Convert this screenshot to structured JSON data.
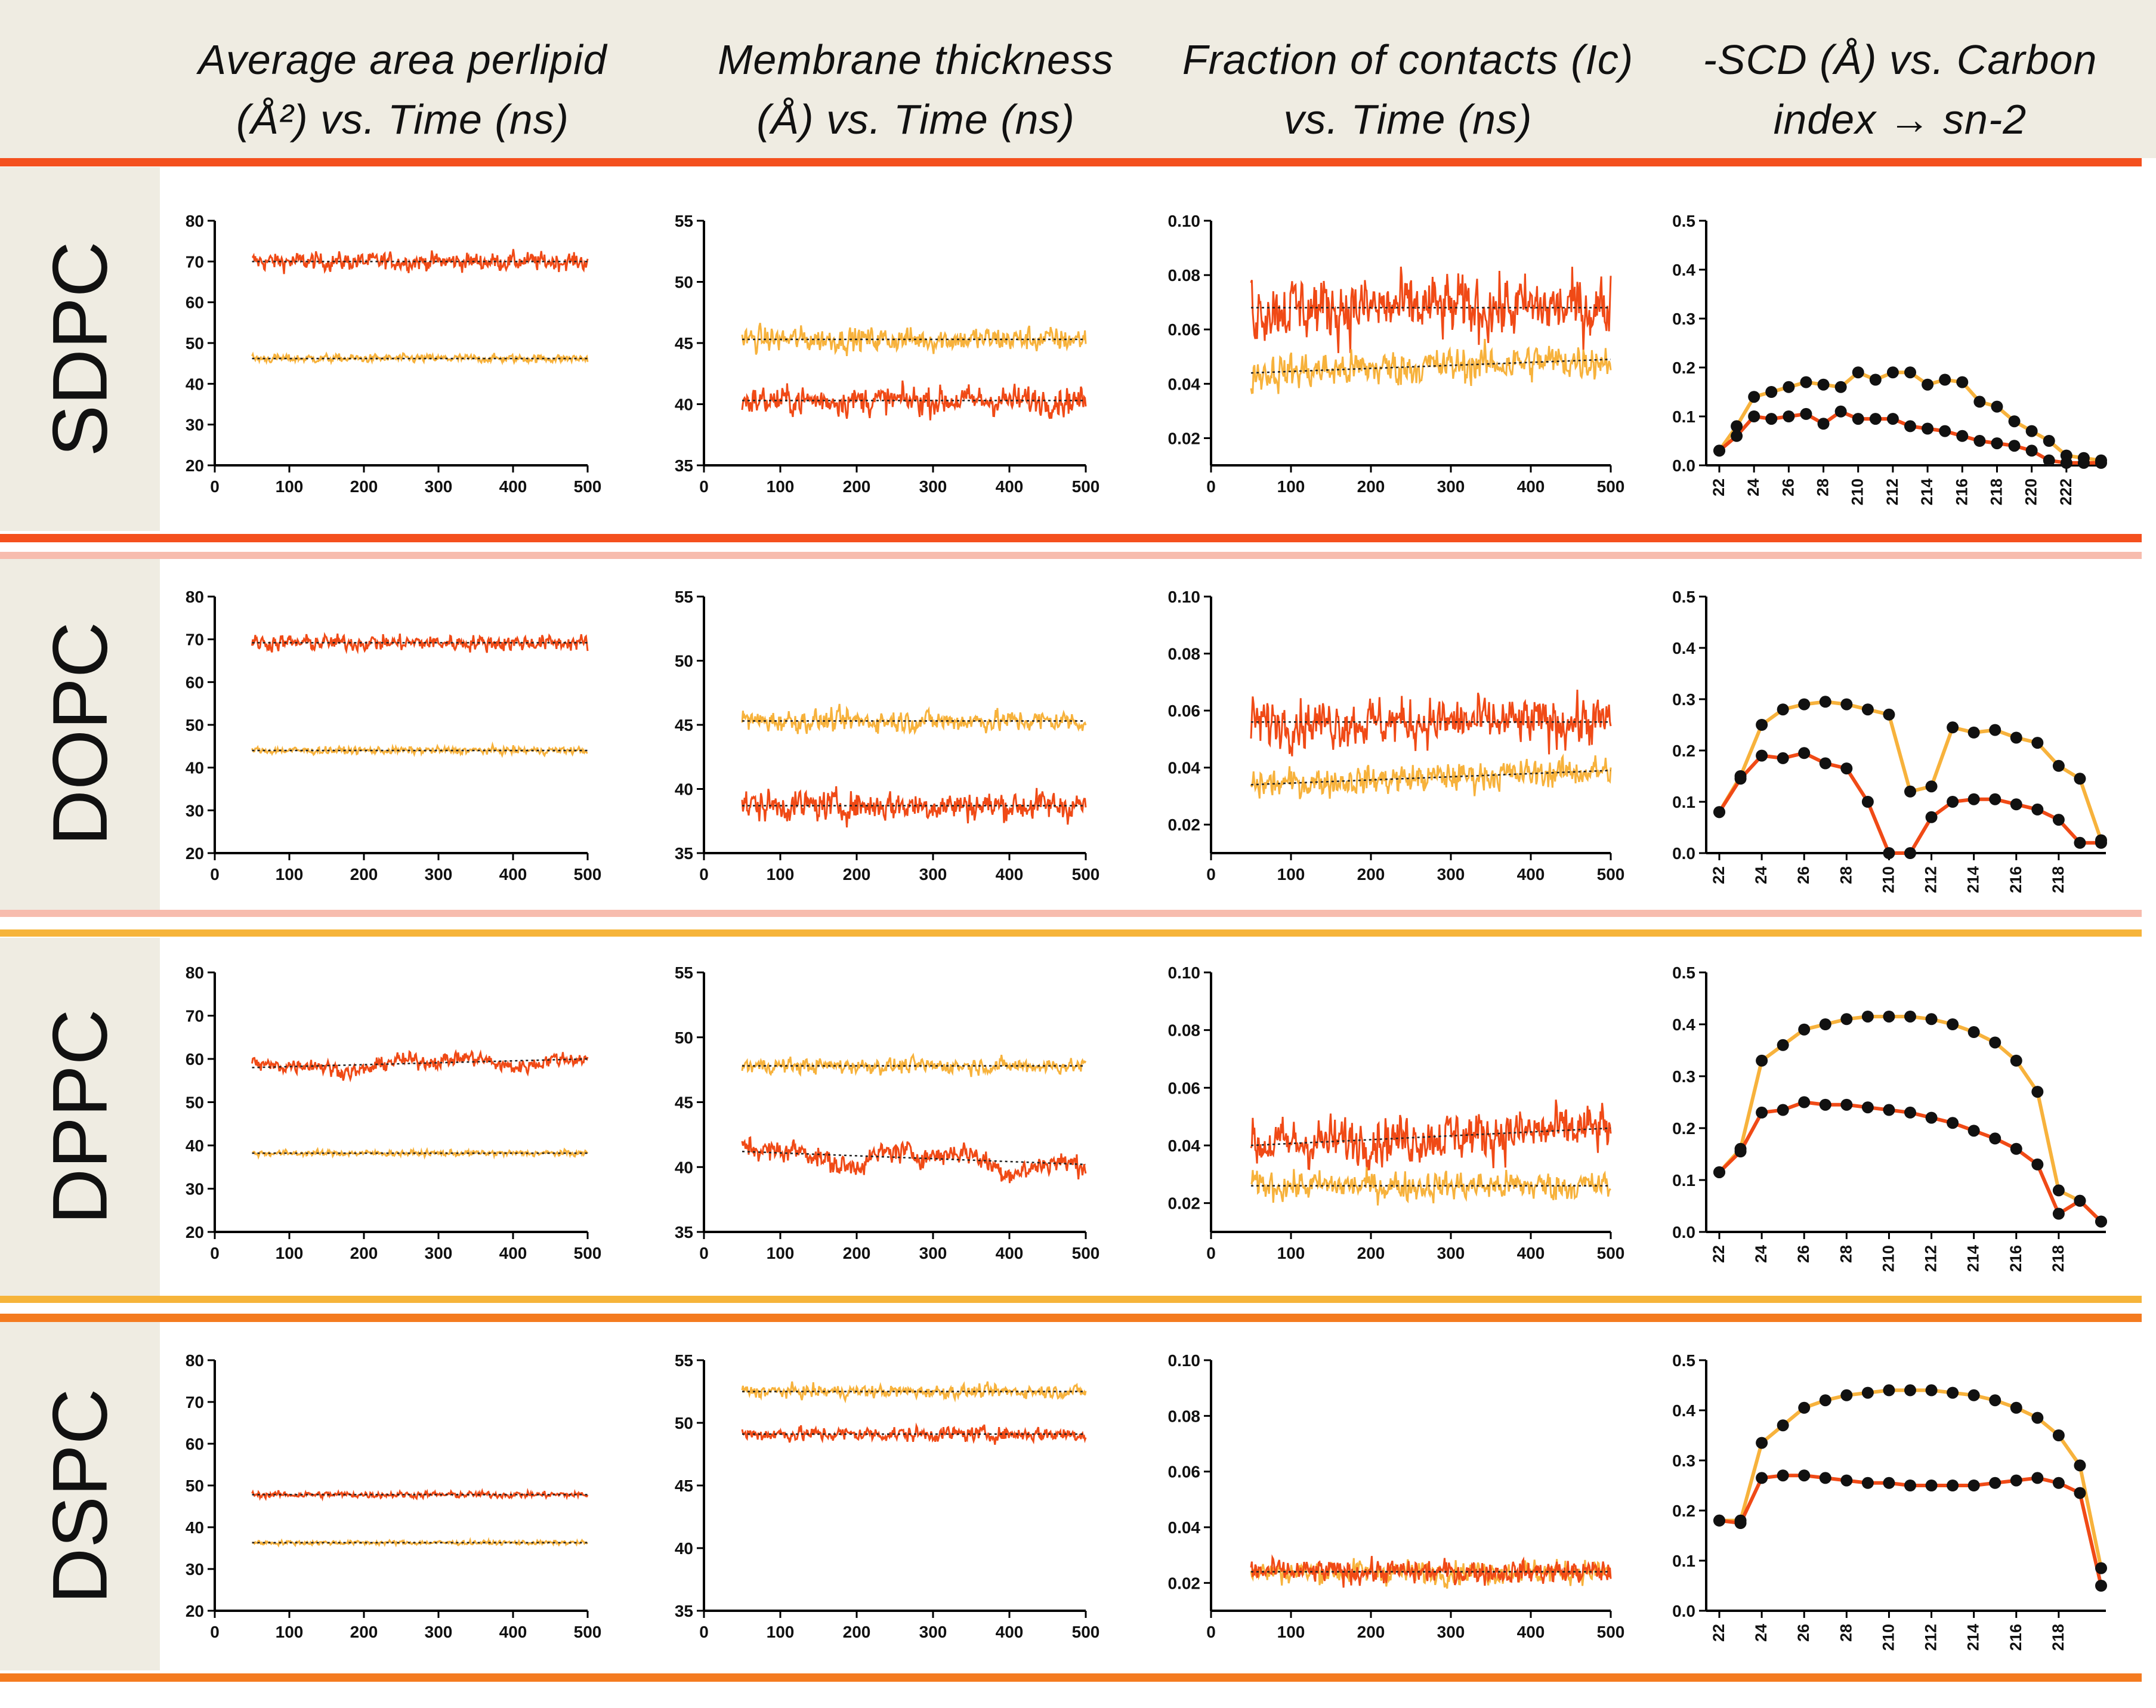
{
  "headers": [
    {
      "line1": "Average area perlipid",
      "line2": "(Å²) vs. Time (ns)"
    },
    {
      "line1": "Membrane thickness",
      "line2": "(Å) vs. Time (ns)"
    },
    {
      "line1": "Fraction of contacts (Ic)",
      "line2": "vs. Time (ns)"
    },
    {
      "line1": "-SCD (Å) vs. Carbon",
      "line2": "index → sn-2"
    }
  ],
  "rows": [
    "SDPC",
    "DOPC",
    "DPPC",
    "DSPC"
  ],
  "colors": {
    "red": "#f04a16",
    "orange": "#f7b23c",
    "header_bg": "#efece2",
    "sep_dark": "#f4501e",
    "sep_pink": "#f7bcae",
    "sep_orange": "#f6b43a",
    "sep_darkorange": "#f47b20"
  },
  "chart_data": [
    {
      "row": "SDPC",
      "type": "line",
      "ylim": [
        20,
        80
      ],
      "yticks": [
        "20",
        "30",
        "40",
        "50",
        "60",
        "70",
        "80"
      ],
      "xlim": [
        0,
        500
      ],
      "xticks": [
        "0",
        "100",
        "200",
        "300",
        "400",
        "500"
      ],
      "series": [
        {
          "mean": 70,
          "noise": 1.3,
          "color": "red",
          "trend": 0
        },
        {
          "mean": 46.2,
          "noise": 0.6,
          "color": "orange",
          "trend": 0
        }
      ]
    },
    {
      "row": "SDPC",
      "type": "line",
      "ylim": [
        35,
        55
      ],
      "yticks": [
        "35",
        "40",
        "45",
        "50",
        "55"
      ],
      "xlim": [
        0,
        500
      ],
      "xticks": [
        "0",
        "100",
        "200",
        "300",
        "400",
        "500"
      ],
      "series": [
        {
          "mean": 45.3,
          "noise": 0.6,
          "color": "orange",
          "trend": 0
        },
        {
          "mean": 40.3,
          "noise": 0.7,
          "color": "red",
          "trend": 0
        }
      ]
    },
    {
      "row": "SDPC",
      "type": "line",
      "ylim": [
        0.01,
        0.1
      ],
      "yticks": [
        "0.02",
        "0.04",
        "0.06",
        "0.08",
        "0.10"
      ],
      "xlim": [
        0,
        500
      ],
      "xticks": [
        "0",
        "100",
        "200",
        "300",
        "400",
        "500"
      ],
      "series": [
        {
          "mean": 0.068,
          "noise": 0.007,
          "color": "red",
          "trend": 0
        },
        {
          "mean": 0.044,
          "noise": 0.004,
          "color": "orange",
          "trend": 0.005
        }
      ]
    },
    {
      "row": "SDPC",
      "type": "line",
      "ylim": [
        0,
        0.5
      ],
      "yticks": [
        "0.0",
        "0.1",
        "0.2",
        "0.3",
        "0.4",
        "0.5"
      ],
      "xticks": [
        "22",
        "24",
        "26",
        "28",
        "210",
        "212",
        "214",
        "216",
        "218",
        "220",
        "222"
      ],
      "orange": [
        0.03,
        0.08,
        0.14,
        0.15,
        0.16,
        0.17,
        0.165,
        0.16,
        0.19,
        0.175,
        0.19,
        0.19,
        0.165,
        0.175,
        0.17,
        0.13,
        0.12,
        0.09,
        0.07,
        0.05,
        0.02,
        0.015,
        0.01
      ],
      "red": [
        0.03,
        0.06,
        0.1,
        0.095,
        0.1,
        0.105,
        0.085,
        0.11,
        0.095,
        0.095,
        0.095,
        0.08,
        0.075,
        0.07,
        0.06,
        0.05,
        0.045,
        0.04,
        0.03,
        0.01,
        0.005,
        0.005,
        0.005
      ]
    },
    {
      "row": "DOPC",
      "type": "line",
      "ylim": [
        20,
        80
      ],
      "yticks": [
        "20",
        "30",
        "40",
        "50",
        "60",
        "70",
        "80"
      ],
      "xlim": [
        0,
        500
      ],
      "xticks": [
        "0",
        "100",
        "200",
        "300",
        "400",
        "500"
      ],
      "series": [
        {
          "mean": 69.2,
          "noise": 1.1,
          "color": "red",
          "trend": 0
        },
        {
          "mean": 44.0,
          "noise": 0.5,
          "color": "orange",
          "trend": 0
        }
      ]
    },
    {
      "row": "DOPC",
      "type": "line",
      "ylim": [
        35,
        55
      ],
      "yticks": [
        "35",
        "40",
        "45",
        "50",
        "55"
      ],
      "xlim": [
        0,
        500
      ],
      "xticks": [
        "0",
        "100",
        "200",
        "300",
        "400",
        "500"
      ],
      "series": [
        {
          "mean": 45.3,
          "noise": 0.5,
          "color": "orange",
          "trend": 0
        },
        {
          "mean": 38.7,
          "noise": 0.7,
          "color": "red",
          "trend": 0
        }
      ]
    },
    {
      "row": "DOPC",
      "type": "line",
      "ylim": [
        0.01,
        0.1
      ],
      "yticks": [
        "0.02",
        "0.04",
        "0.06",
        "0.08",
        "0.10"
      ],
      "xlim": [
        0,
        500
      ],
      "xticks": [
        "0",
        "100",
        "200",
        "300",
        "400",
        "500"
      ],
      "series": [
        {
          "mean": 0.056,
          "noise": 0.005,
          "color": "red",
          "trend": 0
        },
        {
          "mean": 0.034,
          "noise": 0.003,
          "color": "orange",
          "trend": 0.005
        }
      ]
    },
    {
      "row": "DOPC",
      "type": "line",
      "ylim": [
        0,
        0.5
      ],
      "yticks": [
        "0.0",
        "0.1",
        "0.2",
        "0.3",
        "0.4",
        "0.5"
      ],
      "xticks": [
        "22",
        "24",
        "26",
        "28",
        "210",
        "212",
        "214",
        "216",
        "218"
      ],
      "orange": [
        0.08,
        0.15,
        0.25,
        0.28,
        0.29,
        0.295,
        0.29,
        0.28,
        0.27,
        0.12,
        0.13,
        0.245,
        0.235,
        0.24,
        0.225,
        0.215,
        0.17,
        0.145,
        0.025
      ],
      "red": [
        0.08,
        0.145,
        0.19,
        0.185,
        0.195,
        0.175,
        0.165,
        0.1,
        0.0,
        0.0,
        0.07,
        0.1,
        0.105,
        0.105,
        0.095,
        0.085,
        0.065,
        0.02,
        0.02
      ]
    },
    {
      "row": "DPPC",
      "type": "line",
      "ylim": [
        20,
        80
      ],
      "yticks": [
        "20",
        "30",
        "40",
        "50",
        "60",
        "70",
        "80"
      ],
      "xlim": [
        0,
        500
      ],
      "xticks": [
        "0",
        "100",
        "200",
        "300",
        "400",
        "500"
      ],
      "series": [
        {
          "mean": 58,
          "noise": 1.0,
          "color": "red",
          "trend": 2,
          "wave": 1.6
        },
        {
          "mean": 38.2,
          "noise": 0.4,
          "color": "orange",
          "trend": 0
        }
      ]
    },
    {
      "row": "DPPC",
      "type": "line",
      "ylim": [
        35,
        55
      ],
      "yticks": [
        "35",
        "40",
        "45",
        "50",
        "55"
      ],
      "xlim": [
        0,
        500
      ],
      "xticks": [
        "0",
        "100",
        "200",
        "300",
        "400",
        "500"
      ],
      "series": [
        {
          "mean": 47.8,
          "noise": 0.35,
          "color": "orange",
          "trend": 0
        },
        {
          "mean": 41.2,
          "noise": 0.5,
          "color": "red",
          "trend": -1,
          "wave": 0.9
        }
      ]
    },
    {
      "row": "DPPC",
      "type": "line",
      "ylim": [
        0.01,
        0.1
      ],
      "yticks": [
        "0.02",
        "0.04",
        "0.06",
        "0.08",
        "0.10"
      ],
      "xlim": [
        0,
        500
      ],
      "xticks": [
        "0",
        "100",
        "200",
        "300",
        "400",
        "500"
      ],
      "series": [
        {
          "mean": 0.04,
          "noise": 0.005,
          "color": "red",
          "trend": 0.006
        },
        {
          "mean": 0.026,
          "noise": 0.003,
          "color": "orange",
          "trend": 0
        }
      ]
    },
    {
      "row": "DPPC",
      "type": "line",
      "ylim": [
        0,
        0.5
      ],
      "yticks": [
        "0.0",
        "0.1",
        "0.2",
        "0.3",
        "0.4",
        "0.5"
      ],
      "xticks": [
        "22",
        "24",
        "26",
        "28",
        "210",
        "212",
        "214",
        "216",
        "218"
      ],
      "orange": [
        0.115,
        0.16,
        0.33,
        0.36,
        0.39,
        0.4,
        0.41,
        0.415,
        0.415,
        0.415,
        0.41,
        0.4,
        0.385,
        0.365,
        0.33,
        0.27,
        0.08,
        0.06,
        0.02
      ],
      "red": [
        0.115,
        0.155,
        0.23,
        0.235,
        0.25,
        0.245,
        0.245,
        0.24,
        0.235,
        0.23,
        0.22,
        0.21,
        0.195,
        0.18,
        0.16,
        0.13,
        0.035,
        0.06,
        0.02
      ]
    },
    {
      "row": "DSPC",
      "type": "line",
      "ylim": [
        20,
        80
      ],
      "yticks": [
        "20",
        "30",
        "40",
        "50",
        "60",
        "70",
        "80"
      ],
      "xlim": [
        0,
        500
      ],
      "xticks": [
        "0",
        "100",
        "200",
        "300",
        "400",
        "500"
      ],
      "series": [
        {
          "mean": 47.8,
          "noise": 0.45,
          "color": "red",
          "trend": 0
        },
        {
          "mean": 36.3,
          "noise": 0.3,
          "color": "orange",
          "trend": 0
        }
      ]
    },
    {
      "row": "DSPC",
      "type": "line",
      "ylim": [
        35,
        55
      ],
      "yticks": [
        "35",
        "40",
        "45",
        "50",
        "55"
      ],
      "xlim": [
        0,
        500
      ],
      "xticks": [
        "0",
        "100",
        "200",
        "300",
        "400",
        "500"
      ],
      "series": [
        {
          "mean": 52.5,
          "noise": 0.3,
          "color": "orange",
          "trend": 0
        },
        {
          "mean": 49.1,
          "noise": 0.35,
          "color": "red",
          "trend": 0
        }
      ]
    },
    {
      "row": "DSPC",
      "type": "line",
      "ylim": [
        0.01,
        0.1
      ],
      "yticks": [
        "0.02",
        "0.04",
        "0.06",
        "0.08",
        "0.10"
      ],
      "xlim": [
        0,
        500
      ],
      "xticks": [
        "0",
        "100",
        "200",
        "300",
        "400",
        "500"
      ],
      "series": [
        {
          "mean": 0.024,
          "noise": 0.0025,
          "color": "orange",
          "trend": 0
        },
        {
          "mean": 0.024,
          "noise": 0.0025,
          "color": "red",
          "trend": 0
        }
      ]
    },
    {
      "row": "DSPC",
      "type": "line",
      "ylim": [
        0,
        0.5
      ],
      "yticks": [
        "0.0",
        "0.1",
        "0.2",
        "0.3",
        "0.4",
        "0.5"
      ],
      "xticks": [
        "22",
        "24",
        "26",
        "28",
        "210",
        "212",
        "214",
        "216",
        "218"
      ],
      "orange": [
        0.18,
        0.18,
        0.335,
        0.37,
        0.405,
        0.42,
        0.43,
        0.435,
        0.44,
        0.44,
        0.44,
        0.435,
        0.43,
        0.42,
        0.405,
        0.385,
        0.35,
        0.29,
        0.085
      ],
      "red": [
        0.18,
        0.175,
        0.265,
        0.27,
        0.27,
        0.265,
        0.26,
        0.255,
        0.255,
        0.25,
        0.25,
        0.25,
        0.25,
        0.255,
        0.26,
        0.265,
        0.255,
        0.235,
        0.05
      ]
    }
  ]
}
